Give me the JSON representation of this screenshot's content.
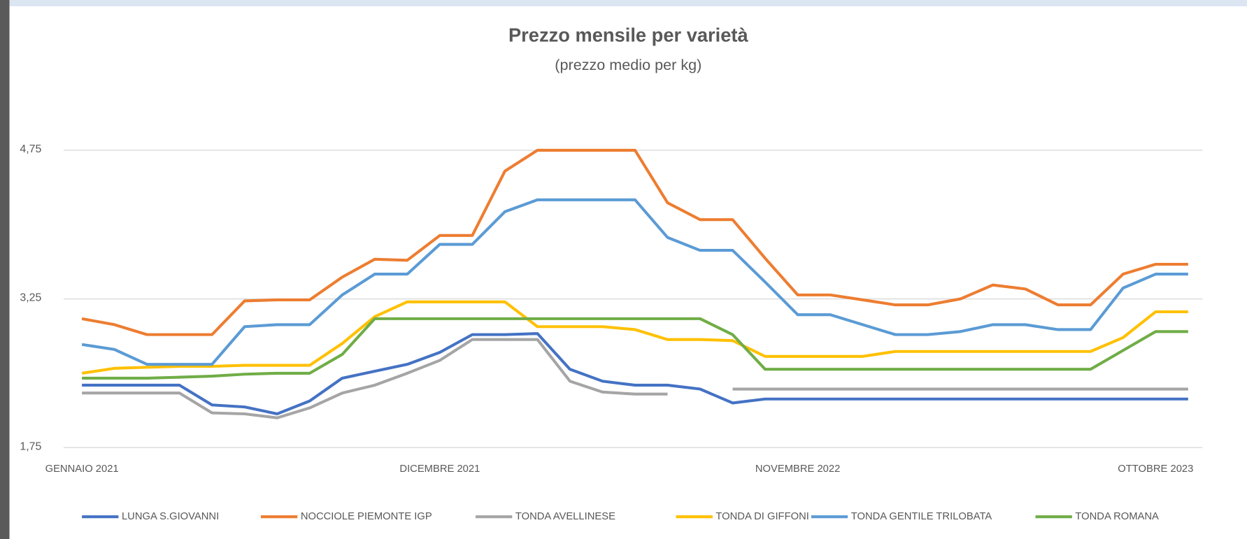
{
  "chart_data": {
    "type": "line",
    "title": "Prezzo mensile per varietà",
    "subtitle": "(prezzo medio per kg)",
    "categories": [
      "GENNAIO 2021",
      null,
      null,
      null,
      null,
      null,
      null,
      null,
      null,
      null,
      null,
      "DICEMBRE 2021",
      null,
      null,
      null,
      null,
      null,
      null,
      null,
      null,
      null,
      null,
      "NOVEMBRE 2022",
      null,
      null,
      null,
      null,
      null,
      null,
      null,
      null,
      null,
      null,
      "OTTOBRE 2023",
      null
    ],
    "ylim": [
      1.75,
      4.75
    ],
    "yticks": [
      {
        "value": 1.75,
        "label": "1,75"
      },
      {
        "value": 3.25,
        "label": "3,25"
      },
      {
        "value": 4.75,
        "label": "4,75"
      }
    ],
    "grid": true,
    "legend": "bottom",
    "series": [
      {
        "name": "LUNGA S.GIOVANNI",
        "color": "#4472c4",
        "values": [
          2.38,
          2.38,
          2.38,
          2.38,
          2.18,
          2.16,
          2.09,
          2.22,
          2.45,
          2.52,
          2.59,
          2.71,
          2.89,
          2.89,
          2.9,
          2.54,
          2.42,
          2.38,
          2.38,
          2.34,
          2.2,
          2.24,
          2.24,
          2.24,
          2.24,
          2.24,
          2.24,
          2.24,
          2.24,
          2.24,
          2.24,
          2.24,
          2.24,
          2.24,
          2.24
        ]
      },
      {
        "name": "NOCCIOLE PIEMONTE IGP",
        "color": "#ed7d31",
        "values": [
          3.05,
          2.99,
          2.89,
          2.89,
          2.89,
          3.23,
          3.24,
          3.24,
          3.47,
          3.65,
          3.64,
          3.89,
          3.89,
          4.54,
          4.75,
          4.75,
          4.75,
          4.75,
          4.22,
          4.05,
          4.05,
          3.66,
          3.29,
          3.29,
          3.24,
          3.19,
          3.19,
          3.25,
          3.39,
          3.35,
          3.19,
          3.19,
          3.5,
          3.6,
          3.6
        ]
      },
      {
        "name": "TONDA AVELLINESE",
        "color": "#a5a5a5",
        "values": [
          2.3,
          2.3,
          2.3,
          2.3,
          2.1,
          2.09,
          2.05,
          2.15,
          2.3,
          2.38,
          2.5,
          2.63,
          2.84,
          2.84,
          2.84,
          2.42,
          2.31,
          2.29,
          2.29,
          null,
          2.34,
          2.34,
          2.34,
          2.34,
          2.34,
          2.34,
          2.34,
          2.34,
          2.34,
          2.34,
          2.34,
          2.34,
          2.34,
          2.34,
          2.34
        ]
      },
      {
        "name": "TONDA DI GIFFONI",
        "color": "#ffc000",
        "values": [
          2.5,
          2.55,
          2.56,
          2.57,
          2.57,
          2.58,
          2.58,
          2.58,
          2.8,
          3.07,
          3.22,
          3.22,
          3.22,
          3.22,
          2.97,
          2.97,
          2.97,
          2.94,
          2.84,
          2.84,
          2.83,
          2.67,
          2.67,
          2.67,
          2.67,
          2.72,
          2.72,
          2.72,
          2.72,
          2.72,
          2.72,
          2.72,
          2.86,
          3.12,
          3.12
        ]
      },
      {
        "name": "TONDA GENTILE TRILOBATA",
        "color": "#5b9bd5",
        "values": [
          2.79,
          2.74,
          2.59,
          2.59,
          2.59,
          2.97,
          2.99,
          2.99,
          3.29,
          3.5,
          3.5,
          3.8,
          3.8,
          4.13,
          4.25,
          4.25,
          4.25,
          4.25,
          3.87,
          3.74,
          3.74,
          3.42,
          3.09,
          3.09,
          2.99,
          2.89,
          2.89,
          2.92,
          2.99,
          2.99,
          2.94,
          2.94,
          3.36,
          3.5,
          3.5
        ]
      },
      {
        "name": "TONDA ROMANA",
        "color": "#70ad47",
        "values": [
          2.45,
          2.45,
          2.45,
          2.46,
          2.47,
          2.49,
          2.5,
          2.5,
          2.69,
          3.05,
          3.05,
          3.05,
          3.05,
          3.05,
          3.05,
          3.05,
          3.05,
          3.05,
          3.05,
          3.05,
          2.89,
          2.54,
          2.54,
          2.54,
          2.54,
          2.54,
          2.54,
          2.54,
          2.54,
          2.54,
          2.54,
          2.54,
          2.73,
          2.92,
          2.92
        ]
      }
    ]
  }
}
